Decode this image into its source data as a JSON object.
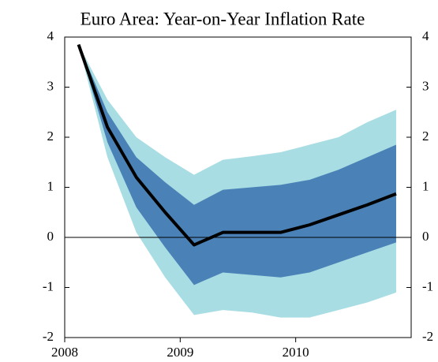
{
  "chart_data": {
    "type": "fan",
    "title": "Euro Area: Year-on-Year Inflation Rate",
    "x": [
      2008.12,
      2008.37,
      2008.62,
      2008.87,
      2009.12,
      2009.37,
      2009.62,
      2009.87,
      2010.12,
      2010.37,
      2010.62,
      2010.87
    ],
    "bands": [
      {
        "color": "#a8dde3",
        "low": [
          3.85,
          1.6,
          0.1,
          -0.8,
          -1.55,
          -1.45,
          -1.5,
          -1.6,
          -1.6,
          -1.45,
          -1.3,
          -1.1
        ],
        "high": [
          3.85,
          2.75,
          2.0,
          1.6,
          1.25,
          1.55,
          1.62,
          1.7,
          1.85,
          2.0,
          2.3,
          2.55
        ]
      },
      {
        "color": "#4a82b8",
        "low": [
          3.85,
          1.9,
          0.6,
          -0.2,
          -0.95,
          -0.7,
          -0.75,
          -0.8,
          -0.7,
          -0.5,
          -0.3,
          -0.1
        ],
        "high": [
          3.85,
          2.5,
          1.6,
          1.1,
          0.65,
          0.95,
          1.0,
          1.05,
          1.15,
          1.35,
          1.6,
          1.85
        ]
      }
    ],
    "line": {
      "color": "#000000",
      "values": [
        3.85,
        2.2,
        1.2,
        0.5,
        -0.15,
        0.1,
        0.1,
        0.1,
        0.25,
        0.45,
        0.65,
        0.87
      ]
    },
    "xlim": [
      2008,
      2011
    ],
    "xticks": [
      2008,
      2009,
      2010
    ],
    "ylim": [
      -2,
      4
    ],
    "yticks": [
      -2,
      -1,
      0,
      1,
      2,
      3,
      4
    ],
    "y2lim": [
      -2,
      4
    ],
    "y2ticks": [
      -2,
      -1,
      0,
      1,
      2,
      3,
      4
    ]
  }
}
